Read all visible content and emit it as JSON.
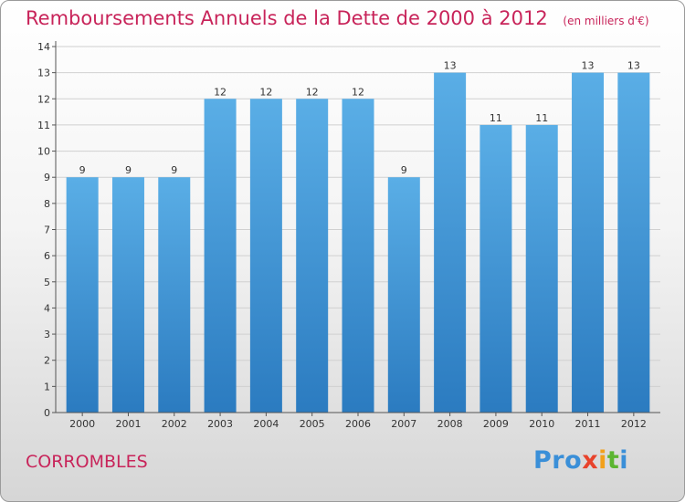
{
  "header": {
    "title": "Remboursements Annuels de la Dette de 2000 à 2012",
    "subtitle": "(en milliers d'€)"
  },
  "footer": {
    "commune": "CORROMBLES",
    "logo_letters": [
      {
        "ch": "P",
        "color": "#3a8fd8"
      },
      {
        "ch": "r",
        "color": "#3a8fd8"
      },
      {
        "ch": "o",
        "color": "#3a8fd8"
      },
      {
        "ch": "x",
        "color": "#e8432c"
      },
      {
        "ch": "i",
        "color": "#f2a01a"
      },
      {
        "ch": "t",
        "color": "#5cb531"
      },
      {
        "ch": "i",
        "color": "#3a8fd8"
      }
    ]
  },
  "chart_data": {
    "type": "bar",
    "title": "Remboursements Annuels de la Dette de 2000 à 2012",
    "subtitle": "(en milliers d'€)",
    "categories": [
      "2000",
      "2001",
      "2002",
      "2003",
      "2004",
      "2005",
      "2006",
      "2007",
      "2008",
      "2009",
      "2010",
      "2011",
      "2012"
    ],
    "values": [
      9,
      9,
      9,
      12,
      12,
      12,
      12,
      9,
      13,
      11,
      11,
      13,
      13
    ],
    "ylim": [
      0,
      14
    ],
    "yticks": [
      0,
      1,
      2,
      3,
      4,
      5,
      6,
      7,
      8,
      9,
      10,
      11,
      12,
      13,
      14
    ],
    "grid": true,
    "bar_color_top": "#5aaee6",
    "bar_color_bottom": "#2b7bc0",
    "grid_color": "#d0d0d0"
  }
}
